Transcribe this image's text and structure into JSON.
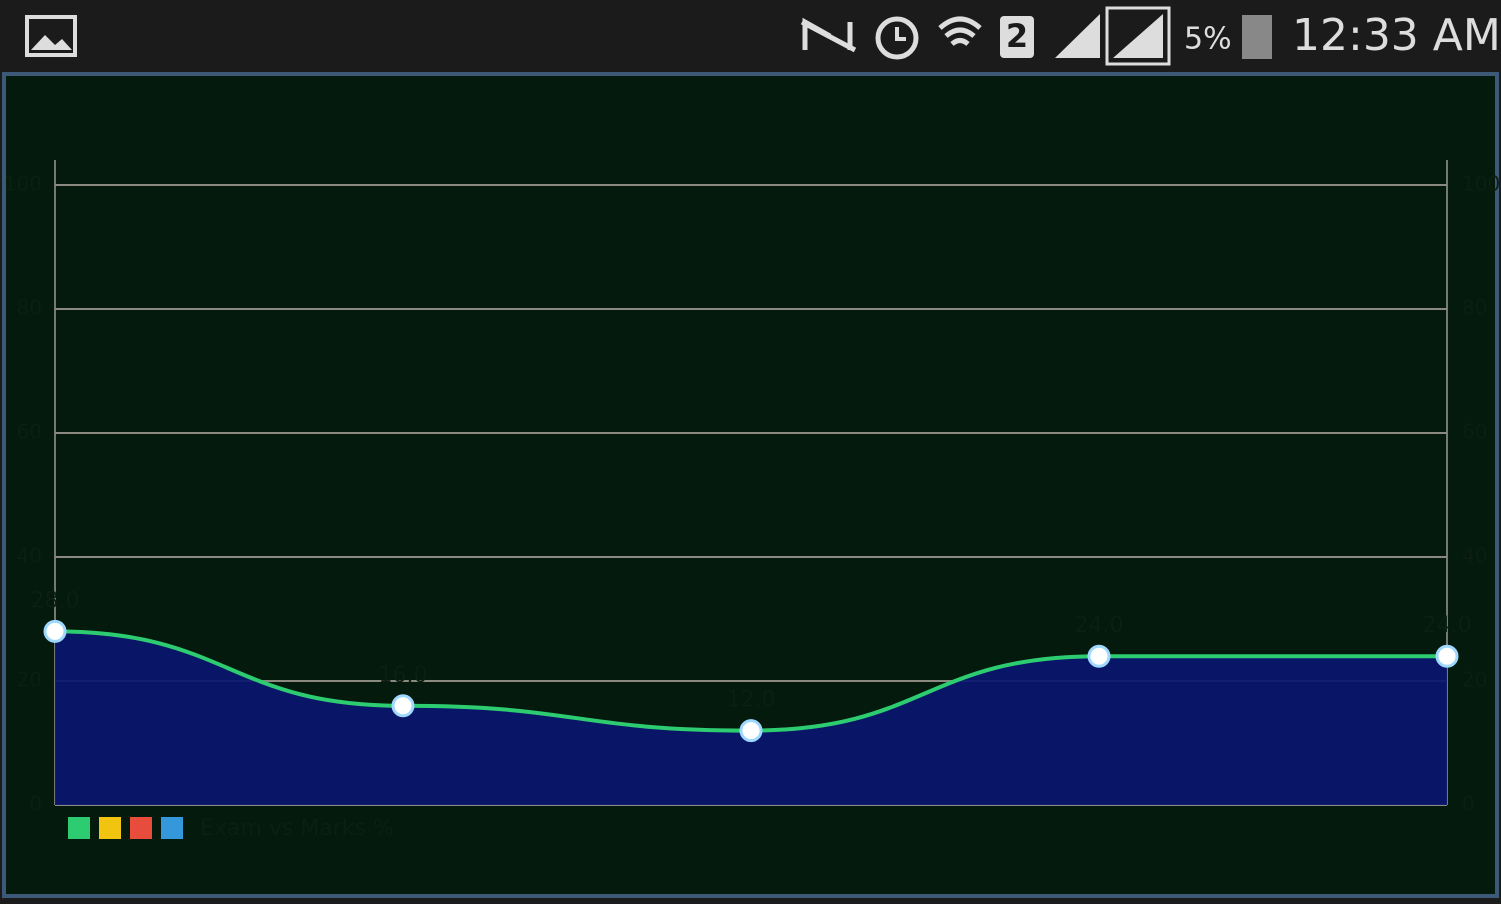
{
  "status_bar": {
    "sim": "2",
    "battery": "5%",
    "time": "12:33 AM"
  },
  "chart_data": {
    "type": "line",
    "area": true,
    "categories": [
      null,
      null,
      null,
      null,
      null
    ],
    "series": [
      {
        "name": "Exam vs Marks %",
        "color": "#2ecc71",
        "fill": "#0a1670",
        "values": [
          28,
          16,
          12,
          24,
          24
        ],
        "value_labels": [
          "28.0",
          "16.0",
          "12.0",
          "24.0",
          "24.0"
        ]
      }
    ],
    "legend_colors": [
      "#2ecc71",
      "#f1c40f",
      "#e74c3c",
      "#3498db"
    ],
    "ylim": [
      0,
      100
    ],
    "yticks": [
      0,
      20,
      40,
      60,
      80,
      100
    ],
    "grid": true
  }
}
